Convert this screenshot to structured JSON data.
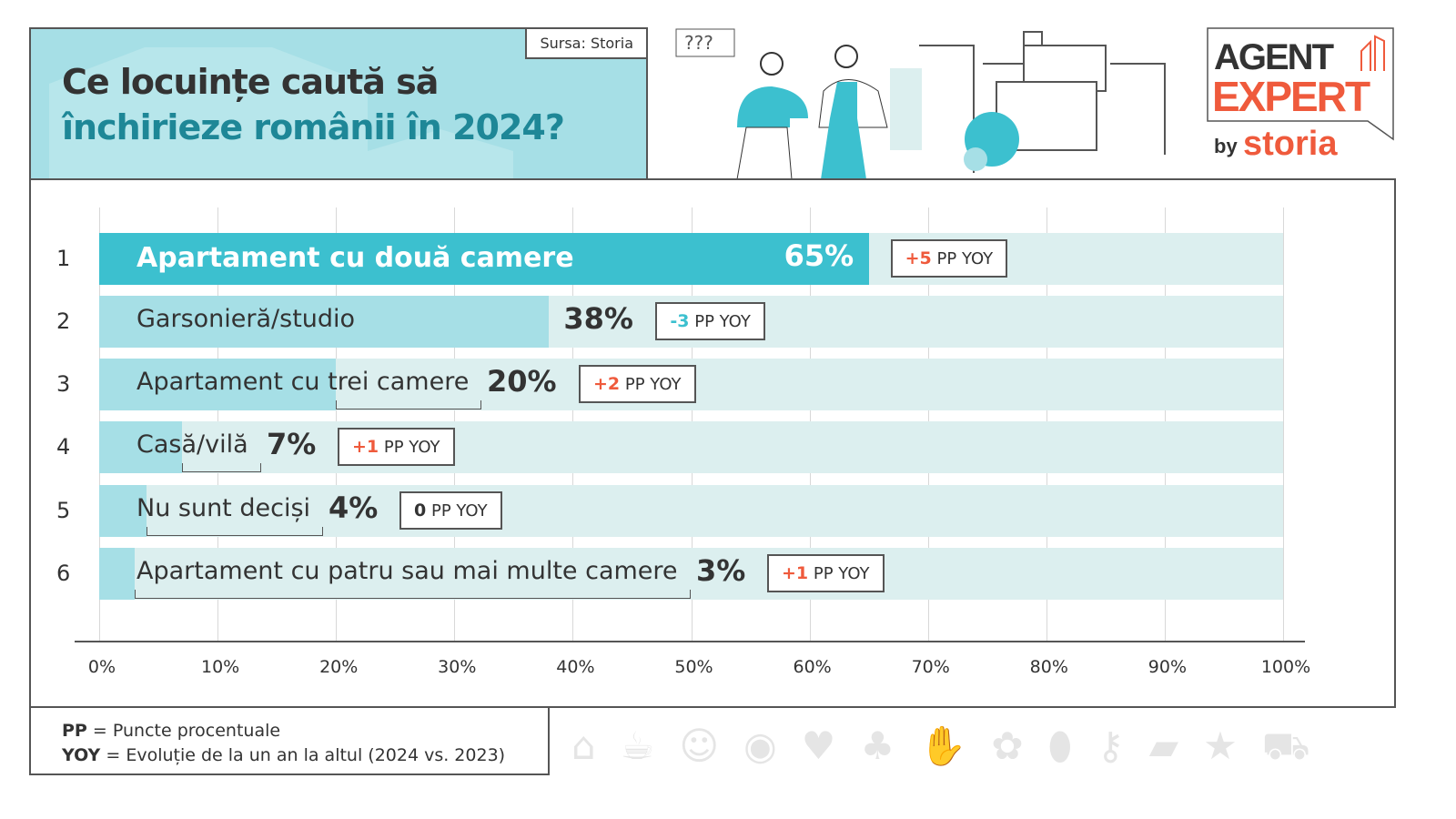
{
  "header": {
    "source": "Sursa: Storia",
    "title_line1": "Ce locuințe caută să",
    "title_line2": "închirieze românii în 2024?"
  },
  "illustration": {
    "speech_bubble": "???"
  },
  "logo": {
    "line1": "AGENT",
    "line2": "EXPERT",
    "by": "by",
    "brand": "storia"
  },
  "colors": {
    "primary_bar": "#3cc0cf",
    "bar": "#a6dfe6",
    "track": "#dcefef",
    "title_accent": "#1e8797",
    "positive": "#ef5a3c",
    "negative": "#3cc0cf",
    "brand_red": "#ef5a3c"
  },
  "chart_data": {
    "type": "bar",
    "orientation": "horizontal",
    "xlim": [
      0,
      100
    ],
    "ticks": [
      "0%",
      "10%",
      "20%",
      "30%",
      "40%",
      "50%",
      "60%",
      "70%",
      "80%",
      "90%",
      "100%"
    ],
    "categories": [
      "Apartament cu două camere",
      "Garsonieră/studio",
      "Apartament cu trei camere",
      "Casă/vilă",
      "Nu sunt deciși",
      "Apartament cu patru sau mai multe camere"
    ],
    "ranks": [
      "1",
      "2",
      "3",
      "4",
      "5",
      "6"
    ],
    "values": [
      65,
      38,
      20,
      7,
      4,
      3
    ],
    "value_labels": [
      "65%",
      "38%",
      "20%",
      "7%",
      "4%",
      "3%"
    ],
    "yoy_change": [
      "+5",
      "-3",
      "+2",
      "+1",
      "0",
      "+1"
    ],
    "yoy_suffix": "PP YOY",
    "grid": true
  },
  "legend": {
    "pp_abbr": "PP",
    "pp_text": "= Puncte procentuale",
    "yoy_abbr": "YOY",
    "yoy_text": "= Evoluție de la un an la altul (2024 vs. 2023)"
  }
}
